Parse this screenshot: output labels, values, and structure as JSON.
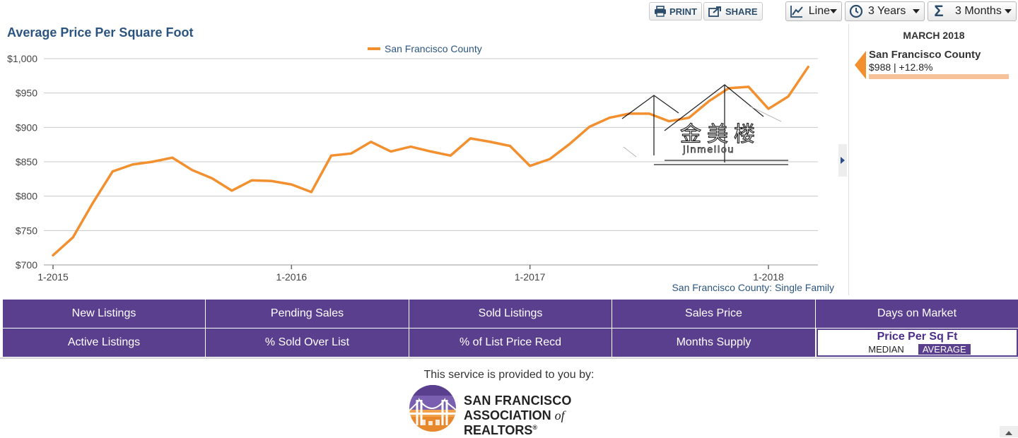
{
  "toolbar": {
    "print_label": "PRINT",
    "share_label": "SHARE",
    "chart_type": "Line",
    "time_range": "3 Years",
    "aggregation": "3 Months"
  },
  "side_panel": {
    "date": "MARCH 2018",
    "series_name": "San Francisco County",
    "value_text": "$988 | +12.8%"
  },
  "source_note": "San Francisco County: Single Family",
  "tabs": {
    "row1": [
      "New Listings",
      "Pending Sales",
      "Sold Listings",
      "Sales Price",
      "Days on Market"
    ],
    "row2": [
      "Active Listings",
      "% Sold Over List",
      "% of List Price Recd",
      "Months Supply"
    ],
    "active": {
      "label": "Price Per Sq Ft",
      "options": [
        "MEDIAN",
        "AVERAGE"
      ],
      "selected": "AVERAGE"
    }
  },
  "footer": {
    "provided_text": "This service is provided to you by:",
    "logo_line1": "SAN FRANCISCO",
    "logo_line2_a": "ASSOCIATION ",
    "logo_line2_b": "of",
    "logo_line2_c": " REALTORS",
    "logo_reg": "®"
  },
  "watermark": {
    "cn": "金美楼",
    "latin": "jinmeilou"
  },
  "colors": {
    "series": "#f28f2e",
    "accent": "#5a3f8e",
    "title": "#2b5580"
  },
  "chart_data": {
    "type": "line",
    "title": "Average Price Per Square Foot",
    "xlabel": "",
    "ylabel": "",
    "ylim": [
      700,
      1000
    ],
    "y_ticks": [
      700,
      750,
      800,
      850,
      900,
      950,
      1000
    ],
    "y_tick_labels": [
      "$700",
      "$750",
      "$800",
      "$850",
      "$900",
      "$950",
      "$1,000"
    ],
    "x_ticks": [
      {
        "month": 0,
        "label": "1-2015"
      },
      {
        "month": 12,
        "label": "1-2016"
      },
      {
        "month": 24,
        "label": "1-2017"
      },
      {
        "month": 36,
        "label": "1-2018"
      }
    ],
    "grid": true,
    "legend_position": "top-center",
    "series": [
      {
        "name": "San Francisco County",
        "x_months": [
          0,
          1,
          2,
          3,
          4,
          5,
          6,
          7,
          8,
          9,
          10,
          11,
          12,
          13,
          14,
          15,
          16,
          17,
          18,
          19,
          20,
          21,
          22,
          23,
          24,
          25,
          26,
          27,
          28,
          29,
          30,
          31,
          32,
          33,
          34,
          35,
          36,
          37,
          38
        ],
        "values": [
          714,
          740,
          790,
          836,
          846,
          850,
          856,
          838,
          826,
          808,
          823,
          822,
          817,
          806,
          859,
          862,
          879,
          865,
          872,
          865,
          859,
          884,
          879,
          873,
          844,
          854,
          876,
          901,
          914,
          920,
          920,
          909,
          914,
          938,
          957,
          959,
          927,
          945,
          988
        ]
      }
    ]
  }
}
